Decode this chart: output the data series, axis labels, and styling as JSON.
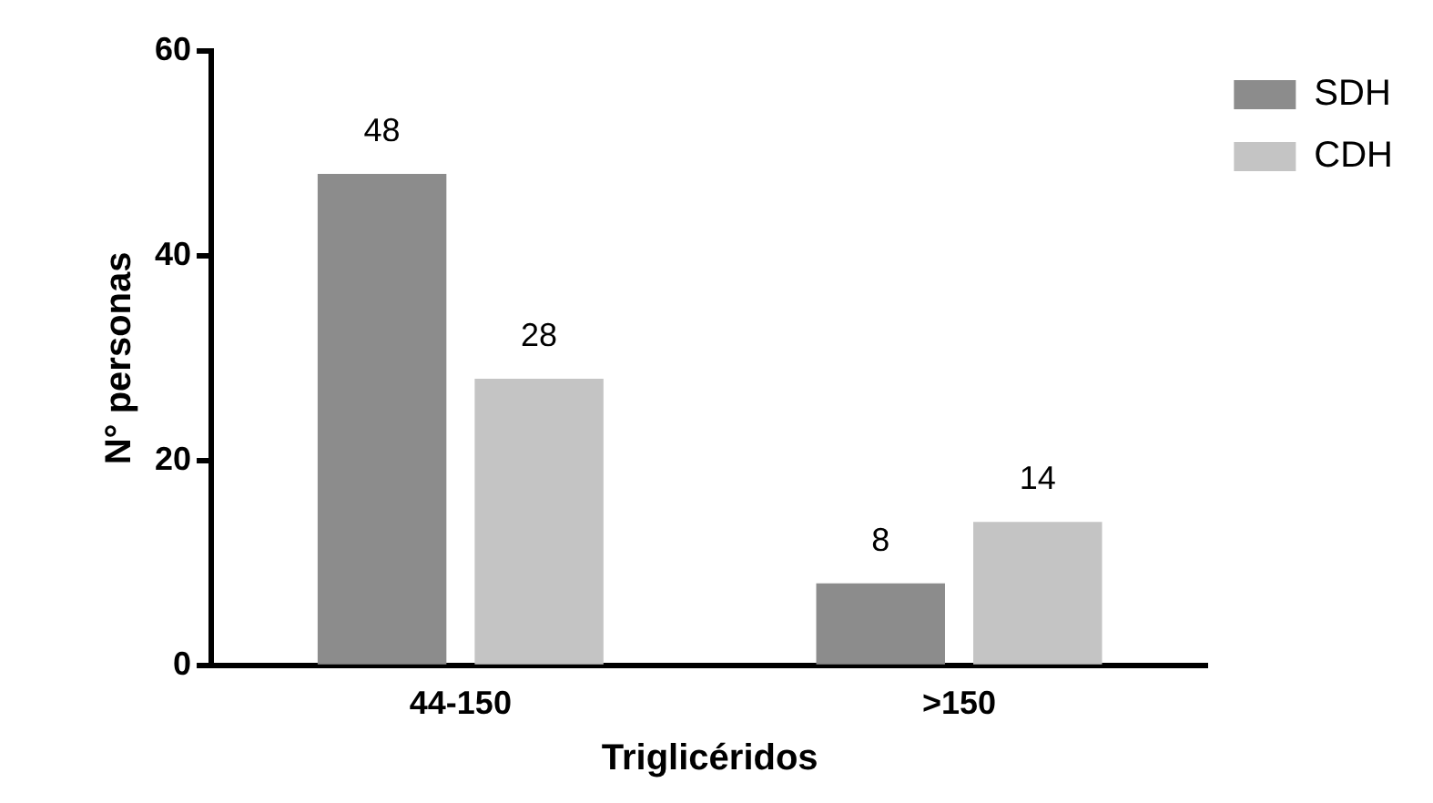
{
  "chart_data": {
    "type": "bar",
    "xlabel": "Triglicéridos",
    "ylabel": "N° personas",
    "categories": [
      "44-150",
      ">150"
    ],
    "series": [
      {
        "name": "SDH",
        "color": "#8c8c8c",
        "values": [
          48,
          8
        ]
      },
      {
        "name": "CDH",
        "color": "#c4c4c4",
        "values": [
          28,
          14
        ]
      }
    ],
    "ylim": [
      0,
      60
    ],
    "yticks": [
      0,
      20,
      40,
      60
    ],
    "grid": false,
    "legend": "top right",
    "data_labels": true
  }
}
